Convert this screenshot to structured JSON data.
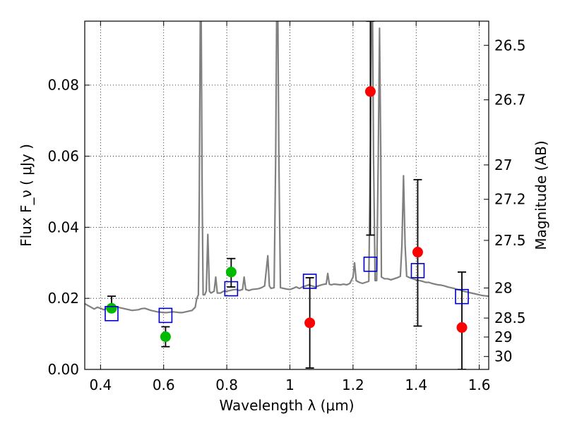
{
  "chart_data": {
    "type": "scatter",
    "title": "",
    "xlabel": "Wavelength  λ (μm)",
    "ylabel": "Flux  F_ν  ( μJy )",
    "ylabel_right": "Magnitude (AB)",
    "xlim": [
      0.35,
      1.63
    ],
    "ylim": [
      0.0,
      0.098
    ],
    "grid": true,
    "x_ticks": [
      {
        "value": 0.4,
        "label": "0.4"
      },
      {
        "value": 0.6,
        "label": "0.6"
      },
      {
        "value": 0.8,
        "label": "0.8"
      },
      {
        "value": 1.0,
        "label": "1"
      },
      {
        "value": 1.2,
        "label": "1.2"
      },
      {
        "value": 1.4,
        "label": "1.4"
      },
      {
        "value": 1.6,
        "label": "1.6"
      }
    ],
    "y_ticks": [
      {
        "value": 0.0,
        "label": "0.00"
      },
      {
        "value": 0.02,
        "label": "0.02"
      },
      {
        "value": 0.04,
        "label": "0.04"
      },
      {
        "value": 0.06,
        "label": "0.06"
      },
      {
        "value": 0.08,
        "label": "0.08"
      }
    ],
    "right_ticks": [
      {
        "mag": 26.5,
        "label": "26.5"
      },
      {
        "mag": 26.7,
        "label": "26.7"
      },
      {
        "mag": 27.0,
        "label": "27"
      },
      {
        "mag": 27.2,
        "label": "27.2"
      },
      {
        "mag": 27.5,
        "label": "27.5"
      },
      {
        "mag": 28.0,
        "label": "28"
      },
      {
        "mag": 28.5,
        "label": "28.5"
      },
      {
        "mag": 29.0,
        "label": "29"
      },
      {
        "mag": 30.0,
        "label": "30"
      }
    ],
    "colors": {
      "spectrum": "#808080",
      "green_points": "#00bb00",
      "red_points": "#ff0000",
      "model_squares": "#0000cc",
      "errorbars": "#000000"
    },
    "series": [
      {
        "type": "line",
        "points": [
          [
            0.35,
            0.0185
          ],
          [
            0.36,
            0.018
          ],
          [
            0.37,
            0.0175
          ],
          [
            0.38,
            0.017
          ],
          [
            0.39,
            0.0175
          ],
          [
            0.4,
            0.0172
          ],
          [
            0.41,
            0.0168
          ],
          [
            0.42,
            0.0172
          ],
          [
            0.43,
            0.0175
          ],
          [
            0.44,
            0.0178
          ],
          [
            0.45,
            0.0176
          ],
          [
            0.46,
            0.0174
          ],
          [
            0.47,
            0.0172
          ],
          [
            0.48,
            0.017
          ],
          [
            0.49,
            0.0168
          ],
          [
            0.5,
            0.0166
          ],
          [
            0.51,
            0.0167
          ],
          [
            0.52,
            0.0168
          ],
          [
            0.53,
            0.0171
          ],
          [
            0.54,
            0.0172
          ],
          [
            0.55,
            0.0169
          ],
          [
            0.56,
            0.0166
          ],
          [
            0.57,
            0.0164
          ],
          [
            0.58,
            0.0162
          ],
          [
            0.59,
            0.0161
          ],
          [
            0.6,
            0.016
          ],
          [
            0.61,
            0.016
          ],
          [
            0.62,
            0.0161
          ],
          [
            0.63,
            0.0162
          ],
          [
            0.64,
            0.0161
          ],
          [
            0.65,
            0.016
          ],
          [
            0.66,
            0.016
          ],
          [
            0.67,
            0.0162
          ],
          [
            0.68,
            0.0164
          ],
          [
            0.69,
            0.0166
          ],
          [
            0.7,
            0.0175
          ],
          [
            0.705,
            0.02
          ],
          [
            0.71,
            0.021
          ],
          [
            0.713,
            0.05
          ],
          [
            0.716,
            0.098
          ],
          [
            0.719,
            0.098
          ],
          [
            0.722,
            0.05
          ],
          [
            0.725,
            0.021
          ],
          [
            0.73,
            0.021
          ],
          [
            0.735,
            0.022
          ],
          [
            0.74,
            0.038
          ],
          [
            0.745,
            0.022
          ],
          [
            0.75,
            0.0215
          ],
          [
            0.76,
            0.022
          ],
          [
            0.765,
            0.026
          ],
          [
            0.77,
            0.0215
          ],
          [
            0.78,
            0.0215
          ],
          [
            0.79,
            0.022
          ],
          [
            0.8,
            0.022
          ],
          [
            0.81,
            0.0222
          ],
          [
            0.82,
            0.0224
          ],
          [
            0.83,
            0.0225
          ],
          [
            0.84,
            0.0222
          ],
          [
            0.85,
            0.0225
          ],
          [
            0.855,
            0.026
          ],
          [
            0.86,
            0.0225
          ],
          [
            0.87,
            0.0222
          ],
          [
            0.88,
            0.0225
          ],
          [
            0.89,
            0.0226
          ],
          [
            0.9,
            0.0227
          ],
          [
            0.91,
            0.023
          ],
          [
            0.92,
            0.0235
          ],
          [
            0.93,
            0.032
          ],
          [
            0.935,
            0.0235
          ],
          [
            0.94,
            0.0228
          ],
          [
            0.95,
            0.023
          ],
          [
            0.955,
            0.06
          ],
          [
            0.958,
            0.098
          ],
          [
            0.962,
            0.098
          ],
          [
            0.965,
            0.06
          ],
          [
            0.97,
            0.023
          ],
          [
            0.98,
            0.0228
          ],
          [
            0.99,
            0.0226
          ],
          [
            1.0,
            0.0225
          ],
          [
            1.01,
            0.0228
          ],
          [
            1.02,
            0.0232
          ],
          [
            1.03,
            0.0228
          ],
          [
            1.04,
            0.0232
          ],
          [
            1.05,
            0.0235
          ],
          [
            1.06,
            0.0238
          ],
          [
            1.07,
            0.0235
          ],
          [
            1.08,
            0.0232
          ],
          [
            1.09,
            0.0235
          ],
          [
            1.1,
            0.0238
          ],
          [
            1.11,
            0.024
          ],
          [
            1.115,
            0.024
          ],
          [
            1.12,
            0.027
          ],
          [
            1.125,
            0.024
          ],
          [
            1.13,
            0.0238
          ],
          [
            1.14,
            0.024
          ],
          [
            1.15,
            0.0239
          ],
          [
            1.16,
            0.0238
          ],
          [
            1.17,
            0.024
          ],
          [
            1.18,
            0.0238
          ],
          [
            1.19,
            0.0242
          ],
          [
            1.2,
            0.026
          ],
          [
            1.205,
            0.03
          ],
          [
            1.21,
            0.025
          ],
          [
            1.22,
            0.0245
          ],
          [
            1.23,
            0.0242
          ],
          [
            1.24,
            0.0245
          ],
          [
            1.25,
            0.0248
          ],
          [
            1.255,
            0.06
          ],
          [
            1.258,
            0.098
          ],
          [
            1.262,
            0.098
          ],
          [
            1.265,
            0.06
          ],
          [
            1.27,
            0.025
          ],
          [
            1.275,
            0.025
          ],
          [
            1.28,
            0.06
          ],
          [
            1.284,
            0.096
          ],
          [
            1.288,
            0.06
          ],
          [
            1.29,
            0.026
          ],
          [
            1.3,
            0.0255
          ],
          [
            1.31,
            0.0255
          ],
          [
            1.32,
            0.0252
          ],
          [
            1.33,
            0.0255
          ],
          [
            1.34,
            0.0258
          ],
          [
            1.35,
            0.0262
          ],
          [
            1.355,
            0.035
          ],
          [
            1.36,
            0.0545
          ],
          [
            1.365,
            0.035
          ],
          [
            1.37,
            0.0262
          ],
          [
            1.38,
            0.0258
          ],
          [
            1.39,
            0.0255
          ],
          [
            1.4,
            0.0252
          ],
          [
            1.41,
            0.025
          ],
          [
            1.42,
            0.0248
          ],
          [
            1.43,
            0.0245
          ],
          [
            1.44,
            0.0245
          ],
          [
            1.45,
            0.0242
          ],
          [
            1.46,
            0.024
          ],
          [
            1.47,
            0.0238
          ],
          [
            1.48,
            0.0237
          ],
          [
            1.49,
            0.0235
          ],
          [
            1.5,
            0.0232
          ],
          [
            1.51,
            0.023
          ],
          [
            1.52,
            0.0228
          ],
          [
            1.53,
            0.0225
          ],
          [
            1.54,
            0.0223
          ],
          [
            1.55,
            0.022
          ],
          [
            1.56,
            0.0218
          ],
          [
            1.57,
            0.0216
          ],
          [
            1.58,
            0.0214
          ],
          [
            1.59,
            0.0212
          ],
          [
            1.6,
            0.021
          ],
          [
            1.61,
            0.0208
          ],
          [
            1.62,
            0.0207
          ],
          [
            1.63,
            0.0206
          ]
        ]
      },
      {
        "type": "scatter",
        "points": [
          {
            "x": 0.435,
            "y": 0.0172,
            "yerr_low": 0.0172,
            "yerr_high": 0.0206
          },
          {
            "x": 0.606,
            "y": 0.0092,
            "yerr_low": 0.0064,
            "yerr_high": 0.012
          },
          {
            "x": 0.814,
            "y": 0.0274,
            "yerr_low": 0.0232,
            "yerr_high": 0.0312
          }
        ]
      },
      {
        "type": "scatter",
        "points": [
          {
            "x": 1.063,
            "y": 0.0131,
            "yerr_low": 0.0004,
            "yerr_high": 0.0258
          },
          {
            "x": 1.255,
            "y": 0.0782,
            "yerr_low": 0.0378,
            "yerr_high": 0.098
          },
          {
            "x": 1.405,
            "y": 0.033,
            "yerr_low": 0.0122,
            "yerr_high": 0.0534
          },
          {
            "x": 1.545,
            "y": 0.0118,
            "yerr_low": 0.0,
            "yerr_high": 0.0274
          }
        ]
      },
      {
        "type": "scatter",
        "marker": "square",
        "points": [
          {
            "x": 0.435,
            "y": 0.0157
          },
          {
            "x": 0.606,
            "y": 0.0152
          },
          {
            "x": 0.814,
            "y": 0.0227
          },
          {
            "x": 1.063,
            "y": 0.0248
          },
          {
            "x": 1.255,
            "y": 0.0296
          },
          {
            "x": 1.405,
            "y": 0.0278
          },
          {
            "x": 1.545,
            "y": 0.0205
          }
        ]
      }
    ]
  }
}
